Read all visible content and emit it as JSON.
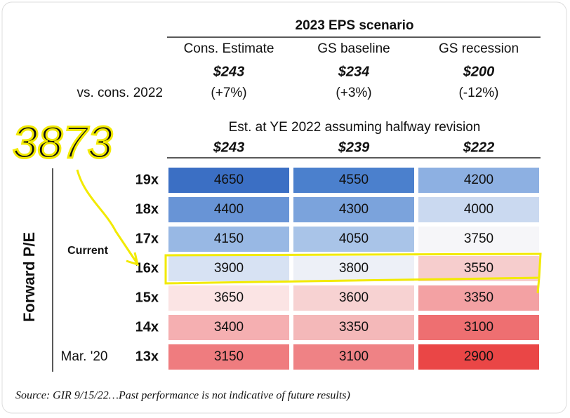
{
  "header": {
    "title": "2023 EPS scenario"
  },
  "vs_label": "vs. cons. 2022",
  "est_label": "Est. at YE 2022 assuming halfway revision",
  "scenarios": [
    {
      "name": "Cons. Estimate",
      "eps": "$243",
      "vs_cons": "(+7%)",
      "est_ye": "$243"
    },
    {
      "name": "GS baseline",
      "eps": "$234",
      "vs_cons": "(+3%)",
      "est_ye": "$239"
    },
    {
      "name": "GS recession",
      "eps": "$200",
      "vs_cons": "(-12%)",
      "est_ye": "$222"
    }
  ],
  "axis_label": "Forward P/E",
  "current_label": "Current",
  "march_label": "Mar. '20",
  "rows": [
    {
      "multiple": "19x",
      "cells": [
        4650,
        4550,
        4200
      ],
      "fills": [
        "#3b6fc4",
        "#4b80cd",
        "#8db0e2"
      ]
    },
    {
      "multiple": "18x",
      "cells": [
        4400,
        4300,
        4000
      ],
      "fills": [
        "#6894d6",
        "#7ba3dc",
        "#cad9f0"
      ]
    },
    {
      "multiple": "17x",
      "cells": [
        4150,
        4050,
        3750
      ],
      "fills": [
        "#98b8e4",
        "#a9c4e8",
        "#f6f6f9"
      ]
    },
    {
      "multiple": "16x",
      "cells": [
        3900,
        3800,
        3550
      ],
      "fills": [
        "#d7e2f3",
        "#edf0f7",
        "#f6cdcd"
      ]
    },
    {
      "multiple": "15x",
      "cells": [
        3650,
        3600,
        3350
      ],
      "fills": [
        "#fbe4e4",
        "#f7d2d2",
        "#f3a1a3"
      ]
    },
    {
      "multiple": "14x",
      "cells": [
        3400,
        3350,
        3100
      ],
      "fills": [
        "#f5afb1",
        "#f4b8b9",
        "#ee6f71"
      ]
    },
    {
      "multiple": "13x",
      "cells": [
        3150,
        3100,
        2900
      ],
      "fills": [
        "#ef7c7f",
        "#ef8285",
        "#ea4646"
      ]
    }
  ],
  "handwriting": "3873",
  "source": "Source: GIR 9/15/22…Past performance is not indicative of future results)"
}
